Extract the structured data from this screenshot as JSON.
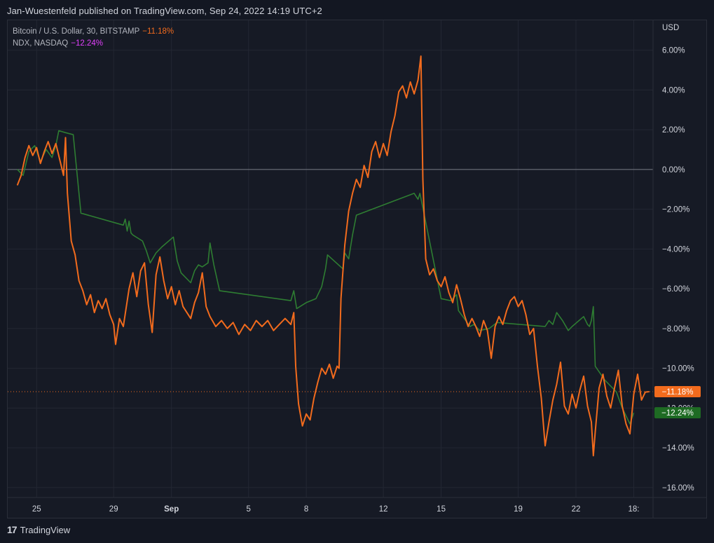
{
  "header": {
    "publisher": "Jan-Wuestenfeld published on TradingView.com, Sep 24, 2022 14:19 UTC+2"
  },
  "footer": {
    "brand": "TradingView"
  },
  "chart_data": {
    "type": "line",
    "title": "",
    "xlabel": "",
    "ylabel": "",
    "y_unit": "USD",
    "ylim": [
      -16.5,
      7.5
    ],
    "grid": true,
    "legend_position": "top-left",
    "x_ticks": [
      {
        "label": "25",
        "day": 25
      },
      {
        "label": "29",
        "day": 29
      },
      {
        "label": "Sep",
        "day": 32
      },
      {
        "label": "5",
        "day": 36
      },
      {
        "label": "8",
        "day": 39
      },
      {
        "label": "12",
        "day": 43
      },
      {
        "label": "15",
        "day": 46
      },
      {
        "label": "19",
        "day": 50
      },
      {
        "label": "22",
        "day": 53
      },
      {
        "label": "18:",
        "day": 56.0
      }
    ],
    "y_ticks": [
      "6.00%",
      "4.00%",
      "2.00%",
      "0.00%",
      "−2.00%",
      "−4.00%",
      "−6.00%",
      "−8.00%",
      "−10.00%",
      "−12.00%",
      "−14.00%",
      "−16.00%"
    ],
    "y_tick_values": [
      6,
      4,
      2,
      0,
      -2,
      -4,
      -6,
      -8,
      -10,
      -12,
      -14,
      -16
    ],
    "baseline": 0,
    "colors": {
      "btc": "#f26b1d",
      "ndx": "#2e7d32",
      "ndx_label": "#1e6b23",
      "grid": "#232733",
      "baseline": "#787b86"
    },
    "series": [
      {
        "name": "Bitcoin / U.S. Dollar, 30, BITSTAMP",
        "change": "−11.18%",
        "last_value": -11.18,
        "color": "#f26b1d",
        "points": [
          [
            24.0,
            -0.8
          ],
          [
            24.2,
            -0.3
          ],
          [
            24.4,
            0.6
          ],
          [
            24.6,
            1.2
          ],
          [
            24.8,
            0.7
          ],
          [
            25.0,
            1.1
          ],
          [
            25.2,
            0.3
          ],
          [
            25.4,
            0.9
          ],
          [
            25.6,
            1.4
          ],
          [
            25.8,
            0.8
          ],
          [
            26.0,
            1.3
          ],
          [
            26.2,
            0.5
          ],
          [
            26.4,
            -0.3
          ],
          [
            26.5,
            1.6
          ],
          [
            26.6,
            -1.2
          ],
          [
            26.8,
            -3.6
          ],
          [
            27.0,
            -4.3
          ],
          [
            27.2,
            -5.6
          ],
          [
            27.4,
            -6.1
          ],
          [
            27.6,
            -6.8
          ],
          [
            27.8,
            -6.3
          ],
          [
            28.0,
            -7.2
          ],
          [
            28.2,
            -6.6
          ],
          [
            28.4,
            -7.0
          ],
          [
            28.6,
            -6.5
          ],
          [
            28.8,
            -7.3
          ],
          [
            29.0,
            -7.8
          ],
          [
            29.1,
            -8.8
          ],
          [
            29.3,
            -7.5
          ],
          [
            29.5,
            -7.9
          ],
          [
            29.8,
            -6.0
          ],
          [
            30.0,
            -5.2
          ],
          [
            30.2,
            -6.4
          ],
          [
            30.4,
            -5.1
          ],
          [
            30.6,
            -4.7
          ],
          [
            30.8,
            -6.8
          ],
          [
            31.0,
            -8.2
          ],
          [
            31.2,
            -5.3
          ],
          [
            31.4,
            -4.4
          ],
          [
            31.6,
            -5.6
          ],
          [
            31.8,
            -6.5
          ],
          [
            32.0,
            -5.9
          ],
          [
            32.2,
            -6.8
          ],
          [
            32.4,
            -6.1
          ],
          [
            32.6,
            -6.9
          ],
          [
            32.8,
            -7.2
          ],
          [
            33.0,
            -7.5
          ],
          [
            33.2,
            -6.7
          ],
          [
            33.4,
            -6.2
          ],
          [
            33.6,
            -5.2
          ],
          [
            33.8,
            -6.9
          ],
          [
            34.0,
            -7.4
          ],
          [
            34.3,
            -7.9
          ],
          [
            34.6,
            -7.6
          ],
          [
            34.9,
            -8.0
          ],
          [
            35.2,
            -7.7
          ],
          [
            35.5,
            -8.3
          ],
          [
            35.8,
            -7.8
          ],
          [
            36.1,
            -8.1
          ],
          [
            36.4,
            -7.6
          ],
          [
            36.7,
            -7.9
          ],
          [
            37.0,
            -7.6
          ],
          [
            37.3,
            -8.1
          ],
          [
            37.6,
            -7.8
          ],
          [
            37.9,
            -7.5
          ],
          [
            38.2,
            -7.8
          ],
          [
            38.35,
            -7.2
          ],
          [
            38.45,
            -9.9
          ],
          [
            38.6,
            -11.8
          ],
          [
            38.8,
            -12.9
          ],
          [
            39.0,
            -12.3
          ],
          [
            39.2,
            -12.6
          ],
          [
            39.4,
            -11.5
          ],
          [
            39.6,
            -10.7
          ],
          [
            39.8,
            -10.0
          ],
          [
            40.0,
            -10.3
          ],
          [
            40.2,
            -9.8
          ],
          [
            40.4,
            -10.5
          ],
          [
            40.6,
            -9.9
          ],
          [
            40.7,
            -10.0
          ],
          [
            40.8,
            -6.5
          ],
          [
            41.0,
            -3.8
          ],
          [
            41.2,
            -2.1
          ],
          [
            41.4,
            -1.2
          ],
          [
            41.6,
            -0.5
          ],
          [
            41.8,
            -0.9
          ],
          [
            42.0,
            0.2
          ],
          [
            42.2,
            -0.4
          ],
          [
            42.4,
            0.9
          ],
          [
            42.6,
            1.4
          ],
          [
            42.8,
            0.6
          ],
          [
            43.0,
            1.3
          ],
          [
            43.2,
            0.7
          ],
          [
            43.4,
            1.9
          ],
          [
            43.6,
            2.7
          ],
          [
            43.8,
            3.9
          ],
          [
            44.0,
            4.2
          ],
          [
            44.2,
            3.6
          ],
          [
            44.4,
            4.4
          ],
          [
            44.6,
            3.8
          ],
          [
            44.8,
            4.5
          ],
          [
            44.95,
            5.7
          ],
          [
            45.05,
            -0.5
          ],
          [
            45.2,
            -4.5
          ],
          [
            45.4,
            -5.3
          ],
          [
            45.6,
            -5.0
          ],
          [
            45.8,
            -5.6
          ],
          [
            46.0,
            -5.9
          ],
          [
            46.2,
            -5.4
          ],
          [
            46.4,
            -6.2
          ],
          [
            46.6,
            -6.7
          ],
          [
            46.8,
            -5.8
          ],
          [
            47.0,
            -6.5
          ],
          [
            47.2,
            -7.3
          ],
          [
            47.4,
            -7.9
          ],
          [
            47.6,
            -7.5
          ],
          [
            47.8,
            -7.9
          ],
          [
            48.0,
            -8.4
          ],
          [
            48.2,
            -7.6
          ],
          [
            48.4,
            -8.1
          ],
          [
            48.6,
            -9.5
          ],
          [
            48.8,
            -7.9
          ],
          [
            49.0,
            -7.4
          ],
          [
            49.2,
            -7.8
          ],
          [
            49.4,
            -7.1
          ],
          [
            49.6,
            -6.6
          ],
          [
            49.8,
            -6.4
          ],
          [
            50.0,
            -6.9
          ],
          [
            50.2,
            -6.6
          ],
          [
            50.4,
            -7.3
          ],
          [
            50.6,
            -8.3
          ],
          [
            50.8,
            -8.0
          ],
          [
            51.0,
            -9.9
          ],
          [
            51.2,
            -11.5
          ],
          [
            51.4,
            -13.9
          ],
          [
            51.6,
            -12.7
          ],
          [
            51.8,
            -11.6
          ],
          [
            52.0,
            -10.8
          ],
          [
            52.2,
            -9.7
          ],
          [
            52.4,
            -11.9
          ],
          [
            52.6,
            -12.3
          ],
          [
            52.8,
            -11.3
          ],
          [
            53.0,
            -12.0
          ],
          [
            53.2,
            -11.1
          ],
          [
            53.4,
            -10.4
          ],
          [
            53.6,
            -11.9
          ],
          [
            53.8,
            -12.7
          ],
          [
            53.9,
            -14.4
          ],
          [
            54.0,
            -13.2
          ],
          [
            54.2,
            -11.0
          ],
          [
            54.4,
            -10.3
          ],
          [
            54.6,
            -11.4
          ],
          [
            54.8,
            -12.0
          ],
          [
            55.0,
            -11.0
          ],
          [
            55.2,
            -10.1
          ],
          [
            55.4,
            -11.9
          ],
          [
            55.6,
            -12.8
          ],
          [
            55.8,
            -13.3
          ],
          [
            56.0,
            -11.3
          ],
          [
            56.2,
            -10.3
          ],
          [
            56.4,
            -11.6
          ],
          [
            56.6,
            -11.2
          ],
          [
            56.8,
            -11.18
          ]
        ]
      },
      {
        "name": "NDX, NASDAQ",
        "change": "−12.24%",
        "last_value": -12.24,
        "color": "#2e7d32",
        "points": [
          [
            24.0,
            0.0
          ],
          [
            24.3,
            -0.3
          ],
          [
            24.6,
            0.9
          ],
          [
            24.9,
            1.2
          ],
          [
            25.2,
            0.4
          ],
          [
            25.5,
            1.0
          ],
          [
            25.8,
            0.6
          ],
          [
            26.0,
            1.2
          ],
          [
            26.15,
            1.95
          ],
          [
            26.5,
            1.85
          ],
          [
            26.9,
            1.75
          ],
          [
            27.3,
            -2.2
          ],
          [
            29.5,
            -2.8
          ],
          [
            29.6,
            -2.5
          ],
          [
            29.7,
            -3.1
          ],
          [
            29.8,
            -2.6
          ],
          [
            29.9,
            -3.2
          ],
          [
            30.0,
            -3.3
          ],
          [
            30.5,
            -3.6
          ],
          [
            30.7,
            -4.1
          ],
          [
            30.9,
            -4.7
          ],
          [
            31.2,
            -4.2
          ],
          [
            31.5,
            -3.9
          ],
          [
            32.1,
            -3.4
          ],
          [
            32.3,
            -4.6
          ],
          [
            32.5,
            -5.2
          ],
          [
            33.0,
            -5.7
          ],
          [
            33.2,
            -5.1
          ],
          [
            33.4,
            -4.8
          ],
          [
            33.6,
            -4.9
          ],
          [
            33.9,
            -4.7
          ],
          [
            34.0,
            -3.7
          ],
          [
            34.2,
            -4.8
          ],
          [
            34.5,
            -6.1
          ],
          [
            38.2,
            -6.6
          ],
          [
            38.35,
            -6.1
          ],
          [
            38.5,
            -7.0
          ],
          [
            39.0,
            -6.7
          ],
          [
            39.5,
            -6.5
          ],
          [
            39.8,
            -5.9
          ],
          [
            40.0,
            -5.0
          ],
          [
            40.1,
            -4.3
          ],
          [
            40.9,
            -5.0
          ],
          [
            41.0,
            -4.2
          ],
          [
            41.2,
            -4.5
          ],
          [
            41.4,
            -3.3
          ],
          [
            41.6,
            -2.3
          ],
          [
            44.6,
            -1.2
          ],
          [
            44.8,
            -1.5
          ],
          [
            44.9,
            -1.2
          ],
          [
            46.0,
            -6.5
          ],
          [
            46.5,
            -6.6
          ],
          [
            46.8,
            -6.3
          ],
          [
            46.9,
            -7.1
          ],
          [
            47.5,
            -7.9
          ],
          [
            47.7,
            -7.8
          ],
          [
            47.8,
            -7.9
          ],
          [
            48.0,
            -8.1
          ],
          [
            48.5,
            -8.0
          ],
          [
            48.9,
            -7.7
          ],
          [
            51.4,
            -7.9
          ],
          [
            51.6,
            -7.6
          ],
          [
            51.8,
            -7.8
          ],
          [
            52.0,
            -7.2
          ],
          [
            52.3,
            -7.6
          ],
          [
            52.6,
            -8.1
          ],
          [
            52.8,
            -7.9
          ],
          [
            53.4,
            -7.4
          ],
          [
            53.6,
            -7.8
          ],
          [
            53.7,
            -7.9
          ],
          [
            53.8,
            -7.6
          ],
          [
            53.9,
            -6.9
          ],
          [
            54.0,
            -9.9
          ],
          [
            54.5,
            -10.6
          ],
          [
            55.1,
            -11.2
          ],
          [
            55.4,
            -12.0
          ],
          [
            55.8,
            -12.8
          ],
          [
            56.0,
            -12.24
          ]
        ]
      }
    ]
  }
}
